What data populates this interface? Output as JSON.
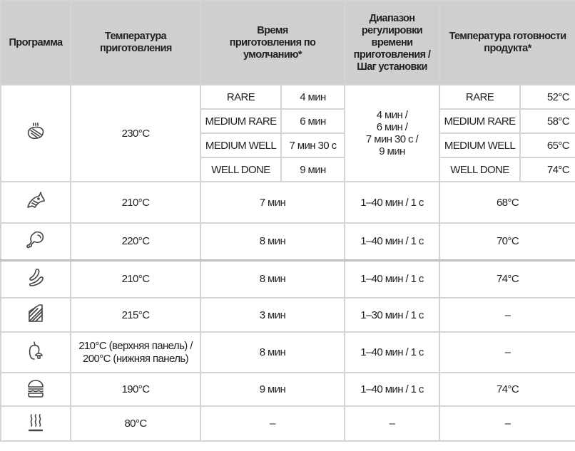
{
  "headers": {
    "program": "Программа",
    "temperature": "Температура приготовления",
    "default_time": "Время приготовления по умолчанию*",
    "range": "Диапазон регулировки времени приготовления / Шаг установки",
    "readiness": "Температура готовности продукта*"
  },
  "steak": {
    "icon": "steak-icon",
    "temperature": "230°C",
    "range_lines": [
      "4 мин /",
      "6 мин /",
      "7 мин 30 с /",
      "9 мин"
    ],
    "levels": [
      {
        "name": "RARE",
        "time": "4 мин",
        "readiness": "52°C"
      },
      {
        "name": "MEDIUM RARE",
        "time": "6 мин",
        "readiness": "58°C"
      },
      {
        "name": "MEDIUM WELL",
        "time": "7 мин 30 с",
        "readiness": "65°C"
      },
      {
        "name": "WELL DONE",
        "time": "9 мин",
        "readiness": "74°C"
      }
    ]
  },
  "rows": [
    {
      "icon": "fish-icon",
      "temperature": "210°C",
      "time": "7 мин",
      "range": "1–40 мин / 1 с",
      "readiness": "68°C"
    },
    {
      "icon": "chicken-leg-icon",
      "temperature": "220°C",
      "time": "8 мин",
      "range": "1–40 мин / 1 с",
      "readiness": "70°C"
    },
    {
      "icon": "sausage-icon",
      "temperature": "210°C",
      "time": "8 мин",
      "range": "1–40 мин / 1 с",
      "readiness": "74°C"
    },
    {
      "icon": "sandwich-icon",
      "temperature": "215°C",
      "time": "3 мин",
      "range": "1–30 мин / 1 с",
      "readiness": "–"
    },
    {
      "icon": "vegetables-icon",
      "temperature_lines": [
        "210°C (верхняя панель) /",
        "200°C (нижняя панель)"
      ],
      "time": "8 мин",
      "range": "1–40 мин / 1 с",
      "readiness": "–"
    },
    {
      "icon": "burger-icon",
      "temperature": "190°C",
      "time": "9 мин",
      "range": "1–40 мин / 1 с",
      "readiness": "74°C"
    },
    {
      "icon": "steam-icon",
      "temperature": "80°C",
      "time": "–",
      "range": "–",
      "readiness": "–"
    }
  ]
}
